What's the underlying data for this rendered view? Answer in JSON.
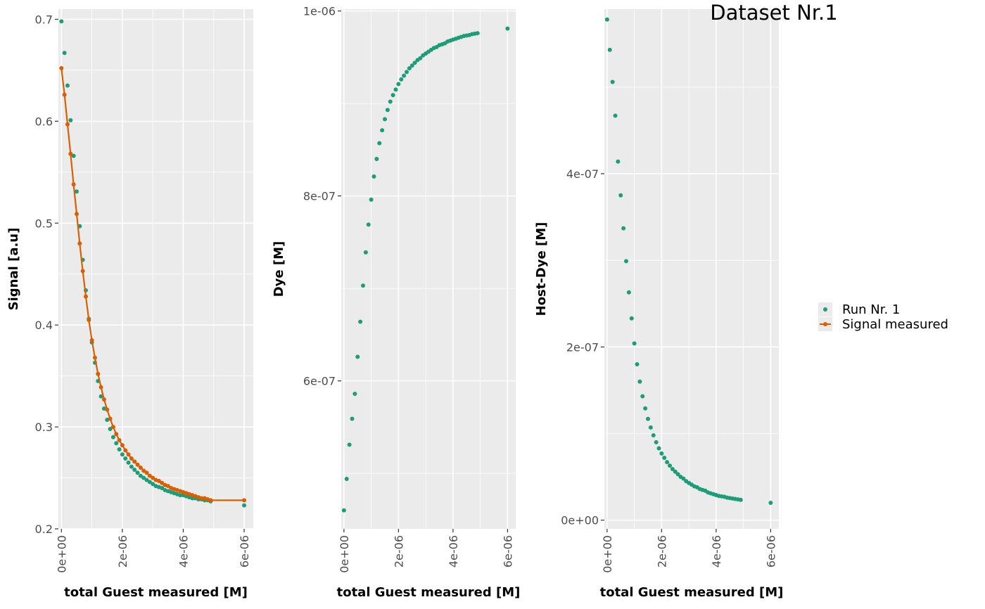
{
  "title": "Dataset Nr.1",
  "colors": {
    "run": "#1b9e77",
    "signal": "#d95f02",
    "panel_bg": "#ebebeb",
    "grid": "#ffffff",
    "tick_text": "#4d4d4d"
  },
  "legend": {
    "entries": [
      {
        "label": "Run Nr. 1",
        "type": "point",
        "color": "#1b9e77"
      },
      {
        "label": "Signal measured",
        "type": "line-point",
        "color": "#d95f02"
      }
    ],
    "placement": "right"
  },
  "chart_data": [
    {
      "type": "scatter",
      "xlabel": "total Guest measured [M]",
      "ylabel": "Signal [a.u]",
      "xlim": [
        -1e-07,
        6.3e-06
      ],
      "ylim": [
        0.2,
        0.71
      ],
      "x_ticks": [
        0,
        2e-06,
        4e-06,
        6e-06
      ],
      "x_tick_labels": [
        "0e+00",
        "2e-06",
        "4e-06",
        "6e-06"
      ],
      "y_ticks": [
        0.2,
        0.3,
        0.4,
        0.5,
        0.6,
        0.7
      ],
      "y_tick_labels": [
        "0.2",
        "0.3",
        "0.4",
        "0.5",
        "0.6",
        "0.7"
      ],
      "grid": true,
      "series": [
        {
          "name": "Run Nr. 1",
          "kind": "points",
          "x": [
            0,
            1e-07,
            2e-07,
            3e-07,
            4e-07,
            5e-07,
            6e-07,
            7e-07,
            8e-07,
            9e-07,
            1e-06,
            1.1e-06,
            1.2e-06,
            1.3e-06,
            1.4e-06,
            1.5e-06,
            1.6e-06,
            1.7e-06,
            1.8e-06,
            1.9e-06,
            2e-06,
            2.1e-06,
            2.2e-06,
            2.3e-06,
            2.4e-06,
            2.5e-06,
            2.6e-06,
            2.7e-06,
            2.8e-06,
            2.9e-06,
            3e-06,
            3.1e-06,
            3.2e-06,
            3.3e-06,
            3.4e-06,
            3.5e-06,
            3.6e-06,
            3.7e-06,
            3.8e-06,
            3.9e-06,
            4e-06,
            4.1e-06,
            4.2e-06,
            4.3e-06,
            4.4e-06,
            4.5e-06,
            4.6e-06,
            4.7e-06,
            4.8e-06,
            4.9e-06,
            6e-06
          ],
          "y": [
            0.698,
            0.667,
            0.635,
            0.601,
            0.566,
            0.531,
            0.497,
            0.464,
            0.434,
            0.406,
            0.383,
            0.363,
            0.345,
            0.33,
            0.318,
            0.307,
            0.298,
            0.29,
            0.284,
            0.278,
            0.273,
            0.269,
            0.265,
            0.261,
            0.258,
            0.255,
            0.252,
            0.25,
            0.248,
            0.246,
            0.244,
            0.242,
            0.241,
            0.24,
            0.238,
            0.237,
            0.236,
            0.235,
            0.234,
            0.233,
            0.233,
            0.232,
            0.231,
            0.23,
            0.23,
            0.229,
            0.229,
            0.228,
            0.228,
            0.227,
            0.223
          ]
        },
        {
          "name": "Signal measured",
          "kind": "line-points",
          "x": [
            0,
            1e-07,
            2e-07,
            3e-07,
            4e-07,
            5e-07,
            6e-07,
            7e-07,
            8e-07,
            9e-07,
            1e-06,
            1.1e-06,
            1.2e-06,
            1.3e-06,
            1.4e-06,
            1.5e-06,
            1.6e-06,
            1.7e-06,
            1.8e-06,
            1.9e-06,
            2e-06,
            2.1e-06,
            2.2e-06,
            2.3e-06,
            2.4e-06,
            2.5e-06,
            2.6e-06,
            2.7e-06,
            2.8e-06,
            2.9e-06,
            3e-06,
            3.1e-06,
            3.2e-06,
            3.3e-06,
            3.4e-06,
            3.5e-06,
            3.6e-06,
            3.7e-06,
            3.8e-06,
            3.9e-06,
            4e-06,
            4.1e-06,
            4.2e-06,
            4.3e-06,
            4.4e-06,
            4.5e-06,
            4.6e-06,
            4.7e-06,
            4.8e-06,
            4.9e-06,
            6e-06
          ],
          "y": [
            0.652,
            0.626,
            0.597,
            0.568,
            0.538,
            0.509,
            0.48,
            0.453,
            0.428,
            0.405,
            0.385,
            0.368,
            0.352,
            0.339,
            0.327,
            0.317,
            0.308,
            0.3,
            0.293,
            0.287,
            0.282,
            0.277,
            0.273,
            0.269,
            0.266,
            0.263,
            0.26,
            0.257,
            0.255,
            0.252,
            0.25,
            0.248,
            0.247,
            0.245,
            0.243,
            0.242,
            0.24,
            0.239,
            0.238,
            0.237,
            0.236,
            0.235,
            0.234,
            0.233,
            0.232,
            0.231,
            0.23,
            0.23,
            0.229,
            0.228,
            0.228
          ]
        }
      ]
    },
    {
      "type": "scatter",
      "xlabel": "total Guest measured [M]",
      "ylabel": "Dye [M]",
      "xlim": [
        -1e-07,
        6.3e-06
      ],
      "ylim": [
        4.4e-07,
        1.002e-06
      ],
      "x_ticks": [
        0,
        2e-06,
        4e-06,
        6e-06
      ],
      "x_tick_labels": [
        "0e+00",
        "2e-06",
        "4e-06",
        "6e-06"
      ],
      "y_ticks": [
        6e-07,
        8e-07,
        1e-06
      ],
      "y_tick_labels": [
        "6e-07",
        "8e-07",
        "1e-06"
      ],
      "grid": true,
      "series": [
        {
          "name": "Run Nr. 1",
          "kind": "points",
          "x": [
            0,
            1e-07,
            2e-07,
            3e-07,
            4e-07,
            5e-07,
            6e-07,
            7e-07,
            8e-07,
            9e-07,
            1e-06,
            1.1e-06,
            1.2e-06,
            1.3e-06,
            1.4e-06,
            1.5e-06,
            1.6e-06,
            1.7e-06,
            1.8e-06,
            1.9e-06,
            2e-06,
            2.1e-06,
            2.2e-06,
            2.3e-06,
            2.4e-06,
            2.5e-06,
            2.6e-06,
            2.7e-06,
            2.8e-06,
            2.9e-06,
            3e-06,
            3.1e-06,
            3.2e-06,
            3.3e-06,
            3.4e-06,
            3.5e-06,
            3.6e-06,
            3.7e-06,
            3.8e-06,
            3.9e-06,
            4e-06,
            4.1e-06,
            4.2e-06,
            4.3e-06,
            4.4e-06,
            4.5e-06,
            4.6e-06,
            4.7e-06,
            4.8e-06,
            4.9e-06,
            6e-06
          ],
          "y": [
            4.6e-07,
            4.94e-07,
            5.31e-07,
            5.59e-07,
            5.86e-07,
            6.26e-07,
            6.64e-07,
            7.03e-07,
            7.39e-07,
            7.69e-07,
            7.96e-07,
            8.21e-07,
            8.4e-07,
            8.57e-07,
            8.71e-07,
            8.83e-07,
            8.93e-07,
            9.02e-07,
            9.09e-07,
            9.15e-07,
            9.21e-07,
            9.26e-07,
            9.3e-07,
            9.34e-07,
            9.38e-07,
            9.41e-07,
            9.44e-07,
            9.47e-07,
            9.49e-07,
            9.52e-07,
            9.54e-07,
            9.56e-07,
            9.58e-07,
            9.6e-07,
            9.61e-07,
            9.63e-07,
            9.64e-07,
            9.65e-07,
            9.67e-07,
            9.68e-07,
            9.69e-07,
            9.7e-07,
            9.71e-07,
            9.72e-07,
            9.73e-07,
            9.735e-07,
            9.74e-07,
            9.75e-07,
            9.755e-07,
            9.76e-07,
            9.81e-07
          ]
        }
      ]
    },
    {
      "type": "scatter",
      "xlabel": "total Guest measured [M]",
      "ylabel": "Host-Dye [M]",
      "xlim": [
        -1e-07,
        6.3e-06
      ],
      "ylim": [
        -1e-08,
        5.9e-07
      ],
      "x_ticks": [
        0,
        2e-06,
        4e-06,
        6e-06
      ],
      "x_tick_labels": [
        "0e+00",
        "2e-06",
        "4e-06",
        "6e-06"
      ],
      "y_ticks": [
        0,
        2e-07,
        4e-07
      ],
      "y_tick_labels": [
        "0e+00",
        "2e-07",
        "4e-07"
      ],
      "grid": true,
      "series": [
        {
          "name": "Run Nr. 1",
          "kind": "points",
          "x": [
            0,
            1e-07,
            2e-07,
            3e-07,
            4e-07,
            5e-07,
            6e-07,
            7e-07,
            8e-07,
            9e-07,
            1e-06,
            1.1e-06,
            1.2e-06,
            1.3e-06,
            1.4e-06,
            1.5e-06,
            1.6e-06,
            1.7e-06,
            1.8e-06,
            1.9e-06,
            2e-06,
            2.1e-06,
            2.2e-06,
            2.3e-06,
            2.4e-06,
            2.5e-06,
            2.6e-06,
            2.7e-06,
            2.8e-06,
            2.9e-06,
            3e-06,
            3.1e-06,
            3.2e-06,
            3.3e-06,
            3.4e-06,
            3.5e-06,
            3.6e-06,
            3.7e-06,
            3.8e-06,
            3.9e-06,
            4e-06,
            4.1e-06,
            4.2e-06,
            4.3e-06,
            4.4e-06,
            4.5e-06,
            4.6e-06,
            4.7e-06,
            4.8e-06,
            4.9e-06,
            6e-06
          ],
          "y": [
            5.78e-07,
            5.43e-07,
            5.06e-07,
            4.67e-07,
            4.14e-07,
            3.75e-07,
            3.37e-07,
            2.99e-07,
            2.63e-07,
            2.33e-07,
            2.04e-07,
            1.8e-07,
            1.6e-07,
            1.43e-07,
            1.29e-07,
            1.17e-07,
            1.07e-07,
            9.8e-08,
            9e-08,
            8.3e-08,
            7.7e-08,
            7.2e-08,
            6.7e-08,
            6.3e-08,
            5.9e-08,
            5.6e-08,
            5.3e-08,
            5e-08,
            4.8e-08,
            4.5e-08,
            4.3e-08,
            4.1e-08,
            3.9e-08,
            3.8e-08,
            3.6e-08,
            3.5e-08,
            3.4e-08,
            3.2e-08,
            3.1e-08,
            3e-08,
            2.9e-08,
            2.8e-08,
            2.75e-08,
            2.7e-08,
            2.6e-08,
            2.55e-08,
            2.5e-08,
            2.45e-08,
            2.4e-08,
            2.35e-08,
            2e-08
          ]
        }
      ]
    }
  ]
}
